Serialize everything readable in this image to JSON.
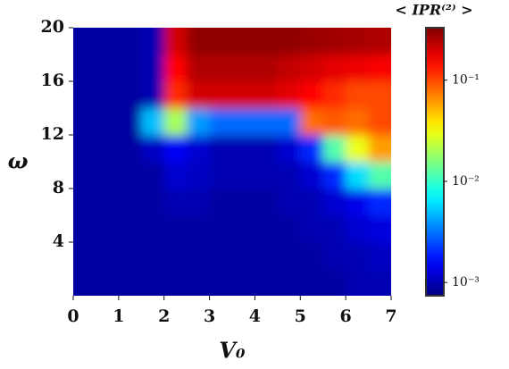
{
  "chart_data": {
    "type": "heatmap",
    "xlabel": "V₀",
    "ylabel": "ω",
    "colorbar_label": "< IPR⁽²⁾ >",
    "x": [
      0.25,
      0.75,
      1.25,
      1.75,
      2.25,
      2.75,
      3.25,
      3.75,
      4.25,
      4.75,
      5.25,
      5.75,
      6.25,
      6.75
    ],
    "y": [
      1,
      3,
      5,
      7,
      9,
      11,
      13,
      15,
      17,
      19
    ],
    "z": [
      [
        0.0009,
        0.0009,
        0.0009,
        0.0009,
        0.0009,
        0.0009,
        0.0009,
        0.0009,
        0.0009,
        0.0009,
        0.0009,
        0.0009,
        0.001,
        0.001
      ],
      [
        0.0009,
        0.0009,
        0.0009,
        0.0009,
        0.0009,
        0.0009,
        0.0009,
        0.0009,
        0.0009,
        0.0009,
        0.0009,
        0.001,
        0.001,
        0.0011
      ],
      [
        0.0009,
        0.0009,
        0.0009,
        0.0009,
        0.0009,
        0.0009,
        0.0009,
        0.0009,
        0.0009,
        0.0009,
        0.001,
        0.001,
        0.0012,
        0.0013
      ],
      [
        0.0009,
        0.0009,
        0.0009,
        0.0009,
        0.001,
        0.001,
        0.0009,
        0.0009,
        0.0009,
        0.001,
        0.001,
        0.0012,
        0.0014,
        0.002
      ],
      [
        0.0009,
        0.0009,
        0.0009,
        0.0009,
        0.0012,
        0.0011,
        0.001,
        0.001,
        0.001,
        0.001,
        0.0012,
        0.002,
        0.006,
        0.012
      ],
      [
        0.0009,
        0.0009,
        0.0009,
        0.0011,
        0.0015,
        0.0012,
        0.001,
        0.001,
        0.001,
        0.0012,
        0.002,
        0.012,
        0.03,
        0.06
      ],
      [
        0.0009,
        0.0009,
        0.0009,
        0.005,
        0.02,
        0.004,
        0.003,
        0.003,
        0.003,
        0.003,
        0.08,
        0.09,
        0.08,
        0.1
      ],
      [
        0.0009,
        0.0009,
        0.0009,
        0.001,
        0.12,
        0.2,
        0.2,
        0.2,
        0.2,
        0.18,
        0.15,
        0.12,
        0.1,
        0.1
      ],
      [
        0.0009,
        0.0009,
        0.0009,
        0.001,
        0.15,
        0.25,
        0.25,
        0.25,
        0.25,
        0.22,
        0.2,
        0.18,
        0.17,
        0.16
      ],
      [
        0.0009,
        0.0009,
        0.0009,
        0.001,
        0.2,
        0.3,
        0.3,
        0.3,
        0.3,
        0.3,
        0.28,
        0.27,
        0.26,
        0.25
      ]
    ],
    "xlim": [
      0,
      7
    ],
    "ylim": [
      0,
      20
    ],
    "xticks": [
      0,
      1,
      2,
      3,
      4,
      5,
      6,
      7
    ],
    "yticks": [
      4,
      8,
      12,
      16,
      20
    ],
    "colormap": "jet",
    "clim": [
      0.00074,
      0.33
    ],
    "color_scale": "log",
    "cticks": [
      {
        "value": 0.001,
        "label": "10⁻³"
      },
      {
        "value": 0.01,
        "label": "10⁻²"
      },
      {
        "value": 0.1,
        "label": "10⁻¹"
      }
    ]
  }
}
